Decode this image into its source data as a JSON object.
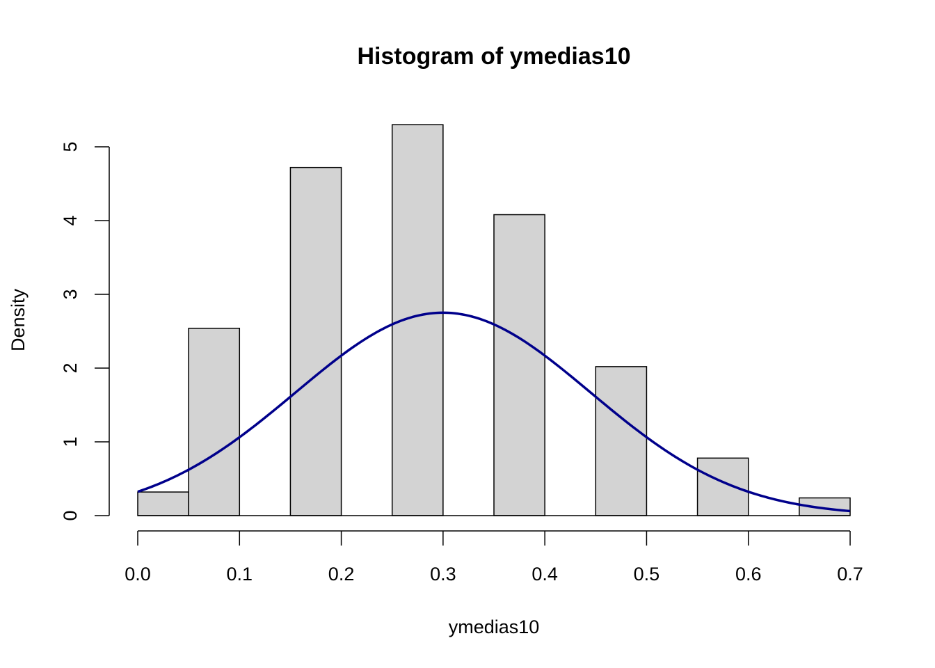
{
  "chart_data": {
    "type": "bar",
    "subtype": "histogram",
    "title": "Histogram of ymedias10",
    "xlabel": "ymedias10",
    "ylabel": "Density",
    "bins": [
      {
        "start": 0.0,
        "end": 0.05,
        "density": 0.32
      },
      {
        "start": 0.05,
        "end": 0.1,
        "density": 2.54
      },
      {
        "start": 0.1,
        "end": 0.15,
        "density": 0.0
      },
      {
        "start": 0.15,
        "end": 0.2,
        "density": 4.72
      },
      {
        "start": 0.2,
        "end": 0.25,
        "density": 0.0
      },
      {
        "start": 0.25,
        "end": 0.3,
        "density": 5.3
      },
      {
        "start": 0.3,
        "end": 0.35,
        "density": 0.0
      },
      {
        "start": 0.35,
        "end": 0.4,
        "density": 4.08
      },
      {
        "start": 0.4,
        "end": 0.45,
        "density": 0.0
      },
      {
        "start": 0.45,
        "end": 0.5,
        "density": 2.02
      },
      {
        "start": 0.5,
        "end": 0.55,
        "density": 0.0
      },
      {
        "start": 0.55,
        "end": 0.6,
        "density": 0.78
      },
      {
        "start": 0.6,
        "end": 0.65,
        "density": 0.0
      },
      {
        "start": 0.65,
        "end": 0.7,
        "density": 0.24
      }
    ],
    "curve": {
      "kind": "normal-density",
      "mean": 0.3,
      "sd": 0.145,
      "x_range": [
        0.0,
        0.7
      ],
      "color": "#00008B"
    },
    "xlim": [
      0.0,
      0.7
    ],
    "ylim": [
      0,
      5.3
    ],
    "x_ticks": [
      "0.0",
      "0.1",
      "0.2",
      "0.3",
      "0.4",
      "0.5",
      "0.6",
      "0.7"
    ],
    "y_ticks": [
      "0",
      "1",
      "2",
      "3",
      "4",
      "5"
    ],
    "bar_fill": "#D3D3D3",
    "bar_stroke": "#000000",
    "grid": false,
    "legend": "none"
  }
}
